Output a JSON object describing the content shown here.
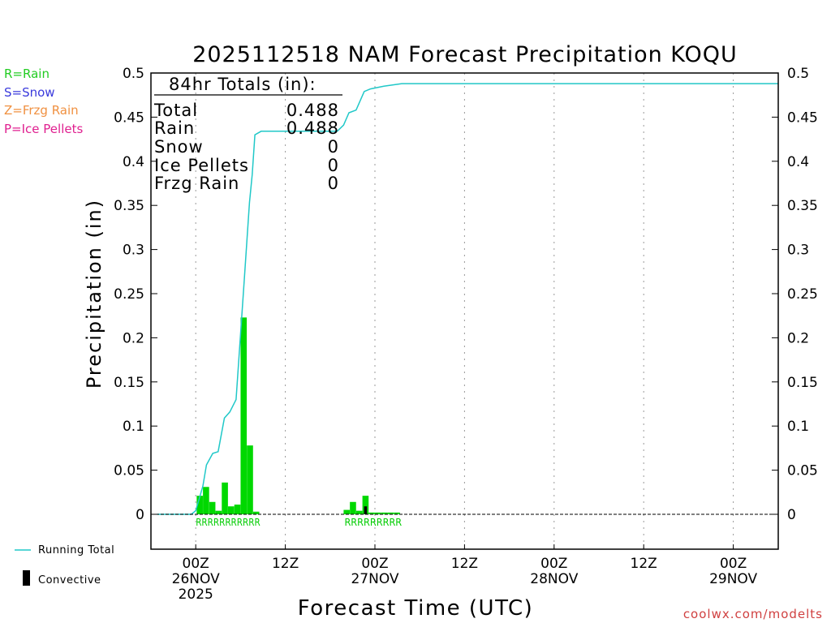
{
  "chart_data": {
    "type": "bar",
    "title": "2025112518 NAM Forecast Precipitation KOQU",
    "ylabel": "Precipitation (in)",
    "xlabel": "Forecast Time (UTC)",
    "ylim": [
      -0.04,
      0.5
    ],
    "y_ticks": [
      "0.5",
      "0.45",
      "0.4",
      "0.35",
      "0.3",
      "0.25",
      "0.2",
      "0.15",
      "0.1",
      "0.05",
      "0"
    ],
    "x_axis": {
      "range_hours": [
        -5,
        65
      ],
      "ticks": [
        {
          "hour": 0,
          "line1": "00Z",
          "line2": "26NOV",
          "line3": "2025"
        },
        {
          "hour": 10,
          "line1": "12Z",
          "line2": "",
          "line3": ""
        },
        {
          "hour": 20,
          "line1": "00Z",
          "line2": "27NOV",
          "line3": ""
        },
        {
          "hour": 30,
          "line1": "12Z",
          "line2": "",
          "line3": ""
        },
        {
          "hour": 40,
          "line1": "00Z",
          "line2": "28NOV",
          "line3": ""
        },
        {
          "hour": 50,
          "line1": "12Z",
          "line2": "",
          "line3": ""
        },
        {
          "hour": 60,
          "line1": "00Z",
          "line2": "29NOV",
          "line3": ""
        }
      ]
    },
    "series": [
      {
        "name": "Rain",
        "color": "#00d800",
        "bars": [
          {
            "x": 0.45,
            "v": 0.021
          },
          {
            "x": 1.15,
            "v": 0.031
          },
          {
            "x": 1.85,
            "v": 0.014
          },
          {
            "x": 2.55,
            "v": 0.004
          },
          {
            "x": 3.25,
            "v": 0.036
          },
          {
            "x": 3.95,
            "v": 0.009
          },
          {
            "x": 4.65,
            "v": 0.011
          },
          {
            "x": 5.35,
            "v": 0.223
          },
          {
            "x": 6.05,
            "v": 0.078
          },
          {
            "x": 6.75,
            "v": 0.003
          },
          {
            "x": 16.85,
            "v": 0.005
          },
          {
            "x": 17.55,
            "v": 0.014
          },
          {
            "x": 18.25,
            "v": 0.004
          },
          {
            "x": 18.95,
            "v": 0.021
          },
          {
            "x": 19.65,
            "v": 0.002
          },
          {
            "x": 20.35,
            "v": 0.002
          },
          {
            "x": 21.05,
            "v": 0.002
          },
          {
            "x": 21.75,
            "v": 0.002
          },
          {
            "x": 22.45,
            "v": 0.002
          }
        ]
      },
      {
        "name": "Convective",
        "color": "#000000",
        "bars": [
          {
            "x": 18.95,
            "v": 0.009
          }
        ]
      },
      {
        "name": "Running Total",
        "color": "#20c8c8",
        "points": [
          [
            -4.3,
            0
          ],
          [
            -0.5,
            0
          ],
          [
            0,
            0.004
          ],
          [
            0.4,
            0.018
          ],
          [
            0.8,
            0.032
          ],
          [
            1.2,
            0.056
          ],
          [
            1.9,
            0.069
          ],
          [
            2.5,
            0.071
          ],
          [
            3.2,
            0.109
          ],
          [
            3.8,
            0.116
          ],
          [
            4.5,
            0.13
          ],
          [
            5.4,
            0.263
          ],
          [
            6.0,
            0.353
          ],
          [
            6.3,
            0.385
          ],
          [
            6.6,
            0.43
          ],
          [
            7.3,
            0.434
          ],
          [
            15.8,
            0.434
          ],
          [
            16.5,
            0.441
          ],
          [
            17.1,
            0.455
          ],
          [
            17.9,
            0.458
          ],
          [
            18.8,
            0.479
          ],
          [
            19.5,
            0.482
          ],
          [
            21.0,
            0.485
          ],
          [
            23.0,
            0.488
          ],
          [
            65,
            0.488
          ]
        ]
      }
    ],
    "ptype_labels": [
      {
        "text": "RRRRRRRRRRR",
        "from": 0,
        "to": 7.2
      },
      {
        "text": "RRRRRRRRR",
        "from": 16.6,
        "to": 23.0
      }
    ],
    "totals": {
      "heading": "84hr Totals (in):",
      "rows": [
        {
          "label": "Total",
          "value": "0.488"
        },
        {
          "label": "Rain",
          "value": "0.488"
        },
        {
          "label": "Snow",
          "value": "0"
        },
        {
          "label": "Ice Pellets",
          "value": "0"
        },
        {
          "label": "Frzg Rain",
          "value": "0"
        }
      ]
    },
    "ptype_key": [
      {
        "text": "R=Rain",
        "color": "#22cc22"
      },
      {
        "text": "S=Snow",
        "color": "#3a3adc"
      },
      {
        "text": "Z=Frzg Rain",
        "color": "#f09040"
      },
      {
        "text": "P=Ice Pellets",
        "color": "#e02090"
      }
    ],
    "legend": {
      "running_total": "Running Total",
      "convective": "Convective"
    },
    "credit": "coolwx.com/modelts"
  }
}
